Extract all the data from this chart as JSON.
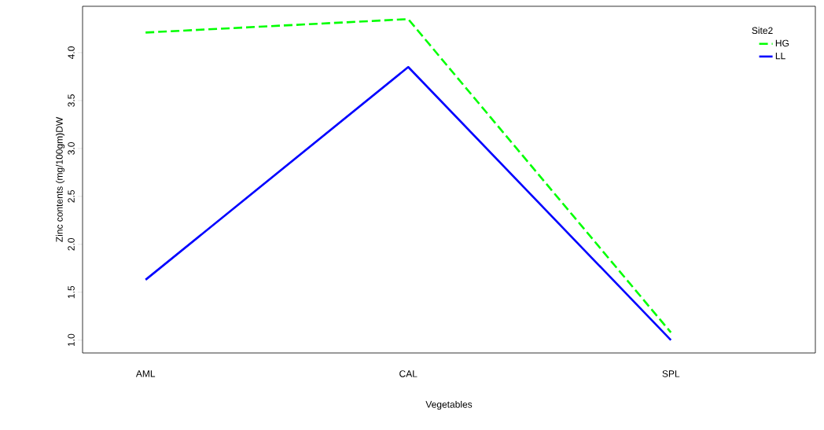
{
  "chart_data": {
    "type": "line",
    "xlabel": "Vegetables",
    "ylabel": "Zinc contents (mg/100gm)DW",
    "legend_title": "Site2",
    "categories": [
      "AML",
      "CAL",
      "SPL"
    ],
    "series": [
      {
        "name": "HG",
        "color": "#00ff00",
        "line_style": "dashed",
        "values": [
          4.21,
          4.35,
          1.08
        ]
      },
      {
        "name": "LL",
        "color": "#0000ff",
        "line_style": "solid",
        "values": [
          1.63,
          3.85,
          1.0
        ]
      }
    ],
    "ylim": [
      0.866,
      4.484
    ],
    "yticks": [
      {
        "value": 1,
        "label": "1.0"
      },
      {
        "value": 1.5,
        "label": "1.5"
      },
      {
        "value": 2,
        "label": "2.0"
      },
      {
        "value": 2.5,
        "label": "2.5"
      },
      {
        "value": 3,
        "label": "3.0"
      },
      {
        "value": 3.5,
        "label": "3.5"
      },
      {
        "value": 4,
        "label": "4.0"
      }
    ],
    "marker": "none",
    "grid": false,
    "legend": "top right"
  }
}
